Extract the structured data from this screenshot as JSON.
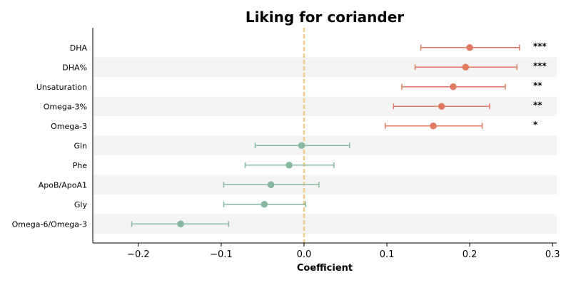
{
  "chart_data": {
    "type": "forest",
    "title": "Liking for coriander",
    "xlabel": "Coefficient",
    "xlim": [
      -0.255,
      0.305
    ],
    "xticks": [
      -0.2,
      -0.1,
      0.0,
      0.1,
      0.2,
      0.3
    ],
    "xtick_labels": [
      "−0.2",
      "−0.1",
      "0.0",
      "0.1",
      "0.2",
      "0.3"
    ],
    "reference_line": 0.0,
    "colors": {
      "positive": "#e07b62",
      "negative": "#86b8a0",
      "reference": "#f2c98b",
      "band": "#f4f4f4"
    },
    "rows": [
      {
        "label": "DHA",
        "estimate": 0.2,
        "ci_low": 0.141,
        "ci_high": 0.26,
        "significance": "***",
        "group": "positive"
      },
      {
        "label": "DHA%",
        "estimate": 0.195,
        "ci_low": 0.134,
        "ci_high": 0.257,
        "significance": "***",
        "group": "positive"
      },
      {
        "label": "Unsaturation",
        "estimate": 0.18,
        "ci_low": 0.118,
        "ci_high": 0.243,
        "significance": "**",
        "group": "positive"
      },
      {
        "label": "Omega-3%",
        "estimate": 0.166,
        "ci_low": 0.108,
        "ci_high": 0.224,
        "significance": "**",
        "group": "positive"
      },
      {
        "label": "Omega-3",
        "estimate": 0.156,
        "ci_low": 0.098,
        "ci_high": 0.215,
        "significance": "*",
        "group": "positive"
      },
      {
        "label": "Gln",
        "estimate": -0.003,
        "ci_low": -0.059,
        "ci_high": 0.055,
        "significance": "",
        "group": "negative"
      },
      {
        "label": "Phe",
        "estimate": -0.018,
        "ci_low": -0.071,
        "ci_high": 0.036,
        "significance": "",
        "group": "negative"
      },
      {
        "label": "ApoB/ApoA1",
        "estimate": -0.04,
        "ci_low": -0.097,
        "ci_high": 0.018,
        "significance": "",
        "group": "negative"
      },
      {
        "label": "Gly",
        "estimate": -0.048,
        "ci_low": -0.097,
        "ci_high": 0.002,
        "significance": "",
        "group": "negative"
      },
      {
        "label": "Omega-6/Omega-3",
        "estimate": -0.149,
        "ci_low": -0.208,
        "ci_high": -0.091,
        "significance": "",
        "group": "negative"
      }
    ]
  }
}
